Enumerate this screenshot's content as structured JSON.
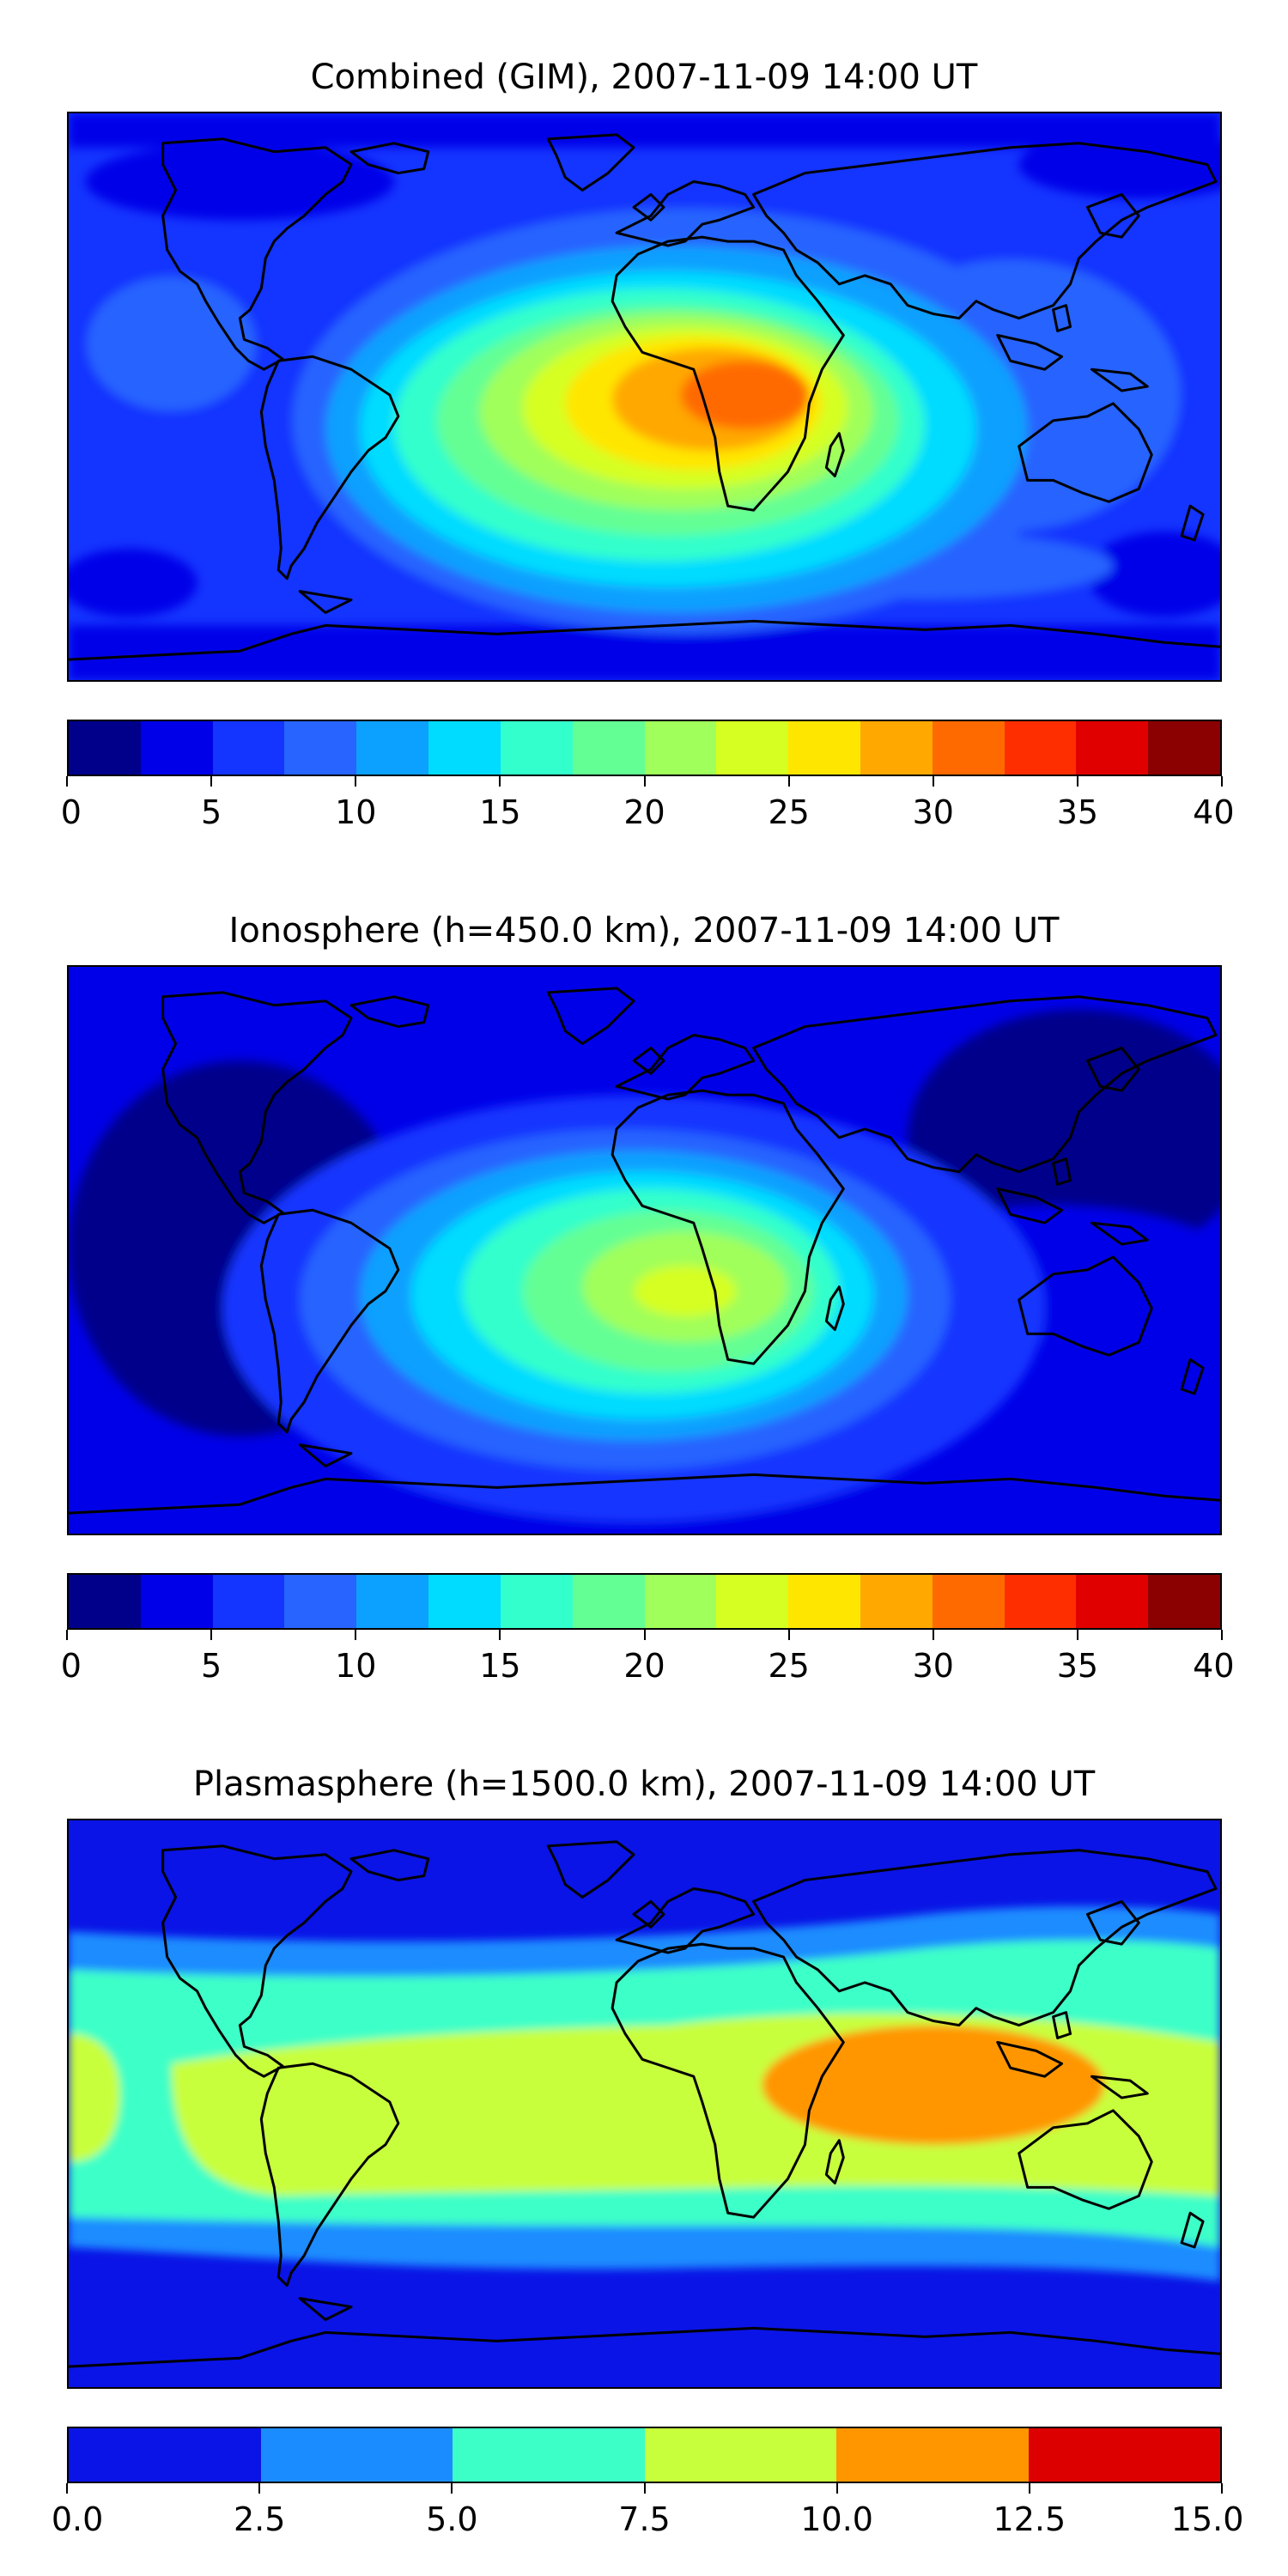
{
  "panels": [
    {
      "title": "Combined (GIM), 2007-11-09 14:00 UT",
      "colorbar": {
        "ticks": [
          "0",
          "5",
          "10",
          "15",
          "20",
          "25",
          "30",
          "35",
          "40"
        ],
        "colors": [
          "#00008b",
          "#0000e8",
          "#1434ff",
          "#2864ff",
          "#0ca0ff",
          "#00dcff",
          "#33ffcc",
          "#64ff94",
          "#a0ff5a",
          "#d6ff22",
          "#ffe600",
          "#ffa800",
          "#ff6a00",
          "#ff2e00",
          "#e00000",
          "#8b0000"
        ]
      }
    },
    {
      "title": "Ionosphere  (h=450.0 km), 2007-11-09 14:00 UT",
      "colorbar": {
        "ticks": [
          "0",
          "5",
          "10",
          "15",
          "20",
          "25",
          "30",
          "35",
          "40"
        ],
        "colors": [
          "#00008b",
          "#0000e8",
          "#1434ff",
          "#2864ff",
          "#0ca0ff",
          "#00dcff",
          "#33ffcc",
          "#64ff94",
          "#a0ff5a",
          "#d6ff22",
          "#ffe600",
          "#ffa800",
          "#ff6a00",
          "#ff2e00",
          "#e00000",
          "#8b0000"
        ]
      }
    },
    {
      "title": "Plasmasphere (h=1500.0 km), 2007-11-09 14:00 UT",
      "colorbar": {
        "ticks": [
          "0.0",
          "2.5",
          "5.0",
          "7.5",
          "10.0",
          "12.5",
          "15.0"
        ],
        "colors": [
          "#0a14e6",
          "#1b8cff",
          "#3cffc8",
          "#c8ff3c",
          "#ff9600",
          "#dc0000"
        ]
      }
    }
  ]
}
